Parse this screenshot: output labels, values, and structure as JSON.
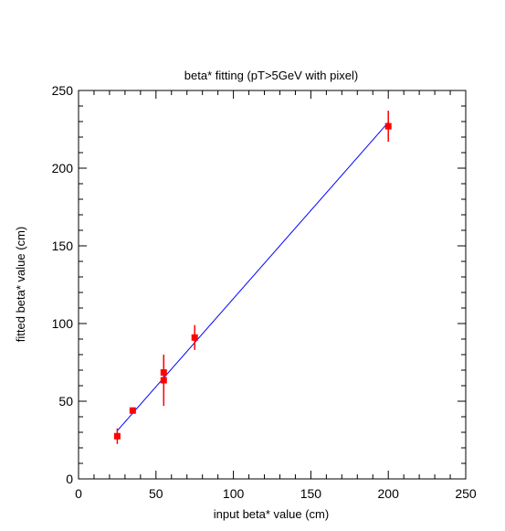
{
  "chart_data": {
    "type": "scatter",
    "title": "beta* fitting (pT>5GeV with pixel)",
    "xlabel": "input beta* value (cm)",
    "ylabel": "fitted beta* value (cm)",
    "xlim": [
      0,
      250
    ],
    "ylim": [
      0,
      250
    ],
    "xticks": [
      "0",
      "50",
      "100",
      "150",
      "200",
      "250"
    ],
    "yticks": [
      "0",
      "50",
      "100",
      "150",
      "200",
      "250"
    ],
    "grid": false,
    "legend": "none",
    "points": [
      {
        "x": 25,
        "y": 27.5,
        "err": 5
      },
      {
        "x": 35,
        "y": 44,
        "err": 2
      },
      {
        "x": 55,
        "y": 68.5,
        "err": 11.5
      },
      {
        "x": 55,
        "y": 63.5,
        "err": 16.5
      },
      {
        "x": 75,
        "y": 91,
        "err": 8
      },
      {
        "x": 200,
        "y": 227,
        "err": 10
      }
    ],
    "fit_line": {
      "x": [
        25,
        200
      ],
      "y": [
        31,
        229.5
      ]
    },
    "colors": {
      "points": "#ff0000",
      "fit": "#0000ff",
      "axes": "#000000"
    }
  }
}
